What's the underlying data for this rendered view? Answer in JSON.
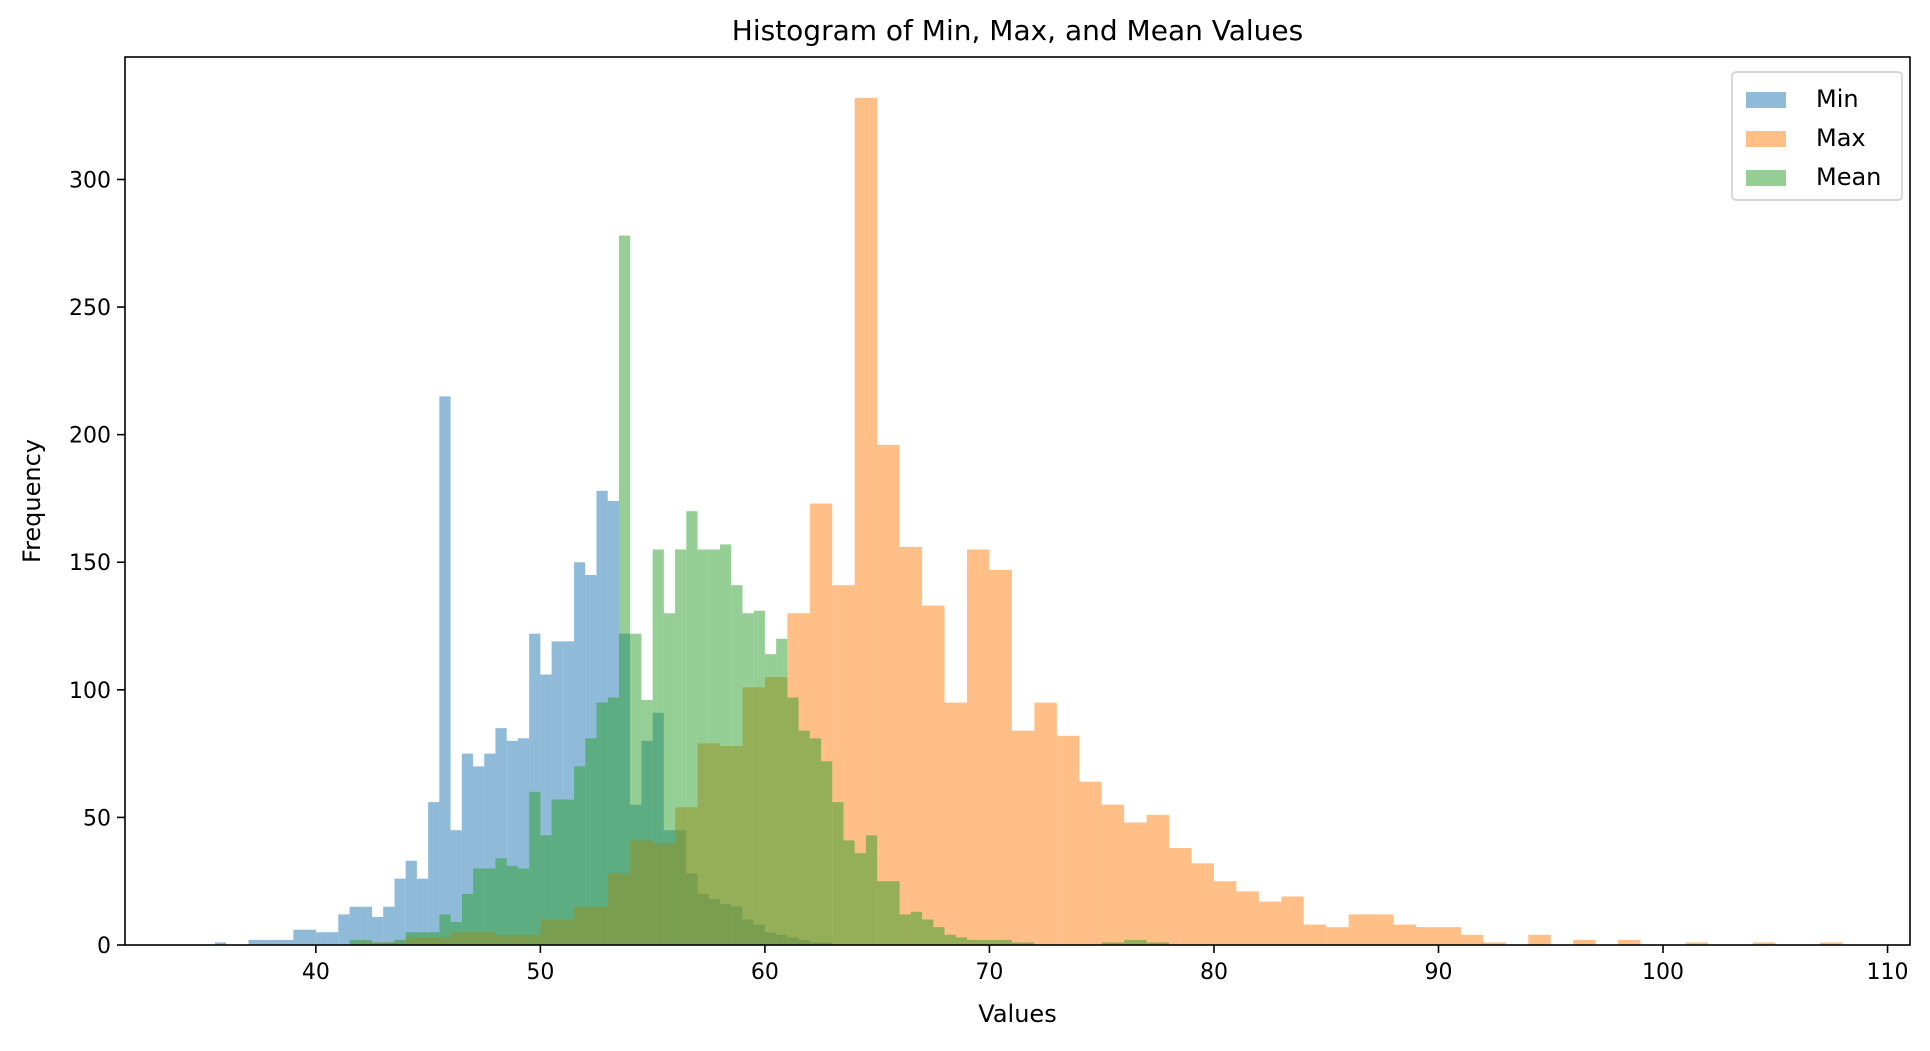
{
  "chart_data": {
    "type": "bar",
    "title": "Histogram of Min, Max, and Mean Values",
    "xlabel": "Values",
    "ylabel": "Frequency",
    "xlim": [
      31.5,
      111
    ],
    "ylim": [
      0,
      348
    ],
    "xticks": [
      40,
      50,
      60,
      70,
      80,
      90,
      100,
      110
    ],
    "yticks": [
      0,
      50,
      100,
      150,
      200,
      250,
      300
    ],
    "grid": false,
    "legend_position": "top-right",
    "series": [
      {
        "name": "Min",
        "color": "#1f77b4",
        "bins": [
          [
            35.5,
            36.0,
            1
          ],
          [
            36.0,
            37.0,
            0
          ],
          [
            37.0,
            38.0,
            2
          ],
          [
            38.0,
            39.0,
            2
          ],
          [
            39.0,
            40.0,
            6
          ],
          [
            40.0,
            40.5,
            5
          ],
          [
            40.5,
            41.0,
            5
          ],
          [
            41.0,
            41.5,
            12
          ],
          [
            41.5,
            42.0,
            15
          ],
          [
            42.0,
            42.5,
            15
          ],
          [
            42.5,
            43.0,
            11
          ],
          [
            43.0,
            43.5,
            15
          ],
          [
            43.5,
            44.0,
            26
          ],
          [
            44.0,
            44.5,
            33
          ],
          [
            44.5,
            45.0,
            26
          ],
          [
            45.0,
            45.5,
            56
          ],
          [
            45.5,
            46.0,
            215
          ],
          [
            46.0,
            46.5,
            45
          ],
          [
            46.5,
            47.0,
            75
          ],
          [
            47.0,
            47.5,
            70
          ],
          [
            47.5,
            48.0,
            75
          ],
          [
            48.0,
            48.5,
            85
          ],
          [
            48.5,
            49.0,
            80
          ],
          [
            49.0,
            49.5,
            81
          ],
          [
            49.5,
            50.0,
            122
          ],
          [
            50.0,
            50.5,
            106
          ],
          [
            50.5,
            51.0,
            119
          ],
          [
            51.0,
            51.5,
            119
          ],
          [
            51.5,
            52.0,
            150
          ],
          [
            52.0,
            52.5,
            145
          ],
          [
            52.5,
            53.0,
            178
          ],
          [
            53.0,
            53.5,
            174
          ],
          [
            53.5,
            54.0,
            122
          ],
          [
            54.0,
            54.5,
            55
          ],
          [
            54.5,
            55.0,
            80
          ],
          [
            55.0,
            55.5,
            91
          ],
          [
            55.5,
            56.0,
            45
          ],
          [
            56.0,
            56.5,
            45
          ],
          [
            56.5,
            57.0,
            28
          ],
          [
            57.0,
            57.5,
            20
          ],
          [
            57.5,
            58.0,
            18
          ],
          [
            58.0,
            58.5,
            16
          ],
          [
            58.5,
            59.0,
            15
          ],
          [
            59.0,
            59.5,
            10
          ],
          [
            59.5,
            60.0,
            8
          ],
          [
            60.0,
            60.5,
            5
          ],
          [
            60.5,
            61.0,
            4
          ],
          [
            61.0,
            61.5,
            3
          ],
          [
            61.5,
            62.0,
            2
          ],
          [
            62.0,
            63.0,
            1
          ]
        ]
      },
      {
        "name": "Max",
        "color": "#ff7f0e",
        "bins": [
          [
            42.0,
            44.0,
            1
          ],
          [
            44.0,
            46.0,
            3
          ],
          [
            46.0,
            48.0,
            5
          ],
          [
            48.0,
            50.0,
            4
          ],
          [
            50.0,
            51.5,
            10
          ],
          [
            51.5,
            53.0,
            15
          ],
          [
            53.0,
            54.0,
            28
          ],
          [
            54.0,
            55.0,
            41
          ],
          [
            55.0,
            56.0,
            40
          ],
          [
            56.0,
            57.0,
            54
          ],
          [
            57.0,
            58.0,
            79
          ],
          [
            58.0,
            59.0,
            78
          ],
          [
            59.0,
            60.0,
            101
          ],
          [
            60.0,
            61.0,
            105
          ],
          [
            61.0,
            62.0,
            130
          ],
          [
            62.0,
            63.0,
            173
          ],
          [
            63.0,
            64.0,
            141
          ],
          [
            64.0,
            65.0,
            332
          ],
          [
            65.0,
            66.0,
            196
          ],
          [
            66.0,
            67.0,
            156
          ],
          [
            67.0,
            68.0,
            133
          ],
          [
            68.0,
            69.0,
            95
          ],
          [
            69.0,
            70.0,
            155
          ],
          [
            70.0,
            71.0,
            147
          ],
          [
            71.0,
            72.0,
            84
          ],
          [
            72.0,
            73.0,
            95
          ],
          [
            73.0,
            74.0,
            82
          ],
          [
            74.0,
            75.0,
            64
          ],
          [
            75.0,
            76.0,
            55
          ],
          [
            76.0,
            77.0,
            48
          ],
          [
            77.0,
            78.0,
            51
          ],
          [
            78.0,
            79.0,
            38
          ],
          [
            79.0,
            80.0,
            32
          ],
          [
            80.0,
            81.0,
            25
          ],
          [
            81.0,
            82.0,
            21
          ],
          [
            82.0,
            83.0,
            17
          ],
          [
            83.0,
            84.0,
            19
          ],
          [
            84.0,
            85.0,
            8
          ],
          [
            85.0,
            86.0,
            7
          ],
          [
            86.0,
            87.0,
            12
          ],
          [
            87.0,
            88.0,
            12
          ],
          [
            88.0,
            89.0,
            8
          ],
          [
            89.0,
            90.0,
            7
          ],
          [
            90.0,
            91.0,
            7
          ],
          [
            91.0,
            92.0,
            4
          ],
          [
            92.0,
            93.0,
            1
          ],
          [
            93.0,
            94.0,
            0
          ],
          [
            94.0,
            95.0,
            4
          ],
          [
            95.0,
            96.0,
            0
          ],
          [
            96.0,
            97.0,
            2
          ],
          [
            97.0,
            98.0,
            0
          ],
          [
            98.0,
            99.0,
            2
          ],
          [
            99.0,
            100.0,
            0
          ],
          [
            100.0,
            101.0,
            0
          ],
          [
            101.0,
            102.0,
            1
          ],
          [
            102.0,
            104.0,
            0
          ],
          [
            104.0,
            105.0,
            1
          ],
          [
            105.0,
            107.0,
            0
          ],
          [
            107.0,
            108.0,
            1
          ]
        ]
      },
      {
        "name": "Mean",
        "color": "#2ca02c",
        "bins": [
          [
            41.5,
            42.5,
            2
          ],
          [
            42.5,
            43.5,
            1
          ],
          [
            43.5,
            44.0,
            2
          ],
          [
            44.0,
            45.0,
            5
          ],
          [
            45.0,
            45.5,
            5
          ],
          [
            45.5,
            46.0,
            12
          ],
          [
            46.0,
            46.5,
            9
          ],
          [
            46.5,
            47.0,
            20
          ],
          [
            47.0,
            47.5,
            30
          ],
          [
            47.5,
            48.0,
            30
          ],
          [
            48.0,
            48.5,
            34
          ],
          [
            48.5,
            49.0,
            31
          ],
          [
            49.0,
            49.5,
            30
          ],
          [
            49.5,
            50.0,
            60
          ],
          [
            50.0,
            50.5,
            43
          ],
          [
            50.5,
            51.0,
            57
          ],
          [
            51.0,
            51.5,
            57
          ],
          [
            51.5,
            52.0,
            70
          ],
          [
            52.0,
            52.5,
            81
          ],
          [
            52.5,
            53.0,
            95
          ],
          [
            53.0,
            53.5,
            97
          ],
          [
            53.5,
            54.0,
            278
          ],
          [
            54.0,
            54.5,
            122
          ],
          [
            54.5,
            55.0,
            96
          ],
          [
            55.0,
            55.5,
            155
          ],
          [
            55.5,
            56.0,
            130
          ],
          [
            56.0,
            56.5,
            155
          ],
          [
            56.5,
            57.0,
            170
          ],
          [
            57.0,
            57.5,
            155
          ],
          [
            57.5,
            58.0,
            155
          ],
          [
            58.0,
            58.5,
            157
          ],
          [
            58.5,
            59.0,
            141
          ],
          [
            59.0,
            59.5,
            130
          ],
          [
            59.5,
            60.0,
            131
          ],
          [
            60.0,
            60.5,
            114
          ],
          [
            60.5,
            61.0,
            120
          ],
          [
            61.0,
            61.5,
            97
          ],
          [
            61.5,
            62.0,
            84
          ],
          [
            62.0,
            62.5,
            81
          ],
          [
            62.5,
            63.0,
            72
          ],
          [
            63.0,
            63.5,
            56
          ],
          [
            63.5,
            64.0,
            41
          ],
          [
            64.0,
            64.5,
            36
          ],
          [
            64.5,
            65.0,
            43
          ],
          [
            65.0,
            65.5,
            25
          ],
          [
            65.5,
            66.0,
            25
          ],
          [
            66.0,
            66.5,
            12
          ],
          [
            66.5,
            67.0,
            13
          ],
          [
            67.0,
            67.5,
            10
          ],
          [
            67.5,
            68.0,
            7
          ],
          [
            68.0,
            68.5,
            4
          ],
          [
            68.5,
            69.0,
            3
          ],
          [
            69.0,
            70.0,
            2
          ],
          [
            70.0,
            71.0,
            2
          ],
          [
            71.0,
            72.0,
            1
          ],
          [
            75.0,
            76.0,
            1
          ],
          [
            76.0,
            77.0,
            2
          ],
          [
            77.0,
            78.0,
            1
          ]
        ]
      }
    ]
  }
}
